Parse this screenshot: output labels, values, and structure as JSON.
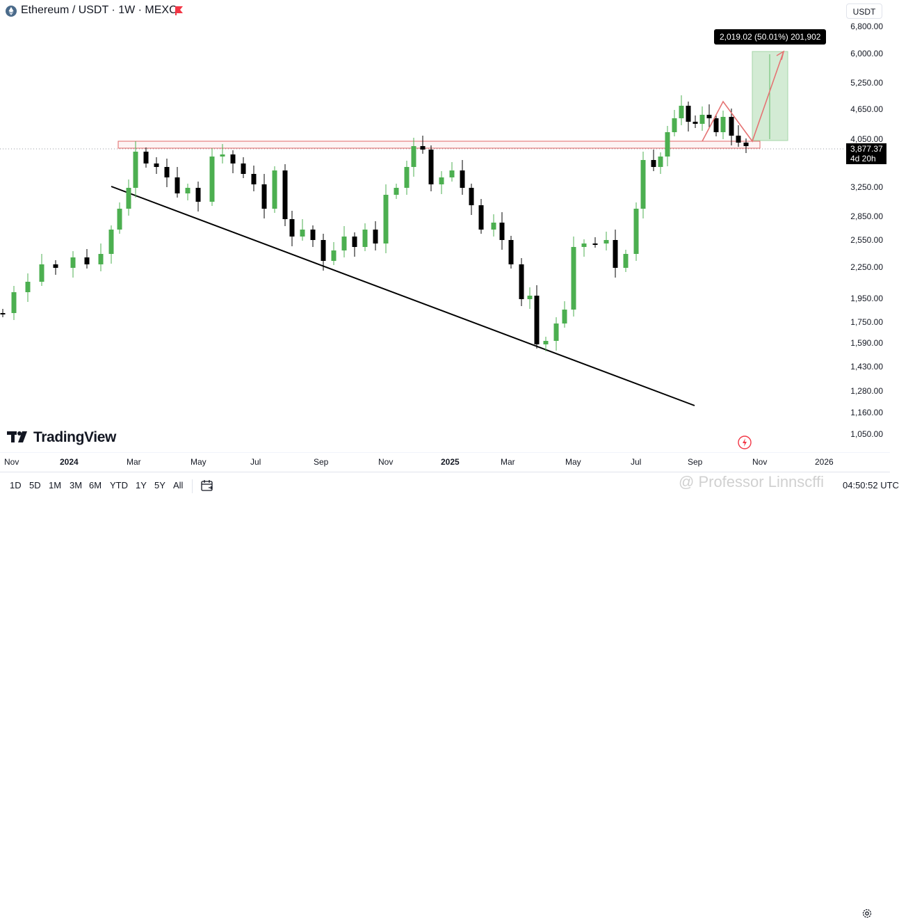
{
  "header": {
    "title": "Ethereum / USDT · 1W · MEXC",
    "currency": "USDT"
  },
  "price_axis": {
    "ticks": [
      "6,800.00",
      "6,000.00",
      "5,250.00",
      "4,650.00",
      "4,050.00",
      "3,250.00",
      "2,850.00",
      "2,550.00",
      "2,250.00",
      "1,950.00",
      "1,750.00",
      "1,590.00",
      "1,430.00",
      "1,280.00",
      "1,160.00",
      "1,050.00"
    ],
    "current_price": "3,877.37",
    "countdown": "4d 20h"
  },
  "measure": {
    "label": "2,019.02 (50.01%) 201,902"
  },
  "time_axis": {
    "labels": [
      {
        "text": "Nov",
        "bold": false
      },
      {
        "text": "2024",
        "bold": true
      },
      {
        "text": "Mar",
        "bold": false
      },
      {
        "text": "May",
        "bold": false
      },
      {
        "text": "Jul",
        "bold": false
      },
      {
        "text": "Sep",
        "bold": false
      },
      {
        "text": "Nov",
        "bold": false
      },
      {
        "text": "2025",
        "bold": true
      },
      {
        "text": "Mar",
        "bold": false
      },
      {
        "text": "May",
        "bold": false
      },
      {
        "text": "Jul",
        "bold": false
      },
      {
        "text": "Sep",
        "bold": false
      },
      {
        "text": "Nov",
        "bold": false
      },
      {
        "text": "2026",
        "bold": false
      }
    ]
  },
  "branding": {
    "logo_text": "TradingView"
  },
  "toolbar": {
    "ranges": [
      "1D",
      "5D",
      "1M",
      "3M",
      "6M",
      "YTD",
      "1Y",
      "5Y",
      "All"
    ],
    "clock": "04:50:52 UTC"
  },
  "watermark": "@ Professor Linnscffi",
  "colors": {
    "up": "#4caf50",
    "down": "#000000",
    "zone_border": "#e06666",
    "target_fill": "#c8e6c9",
    "trendline": "#000000"
  }
}
